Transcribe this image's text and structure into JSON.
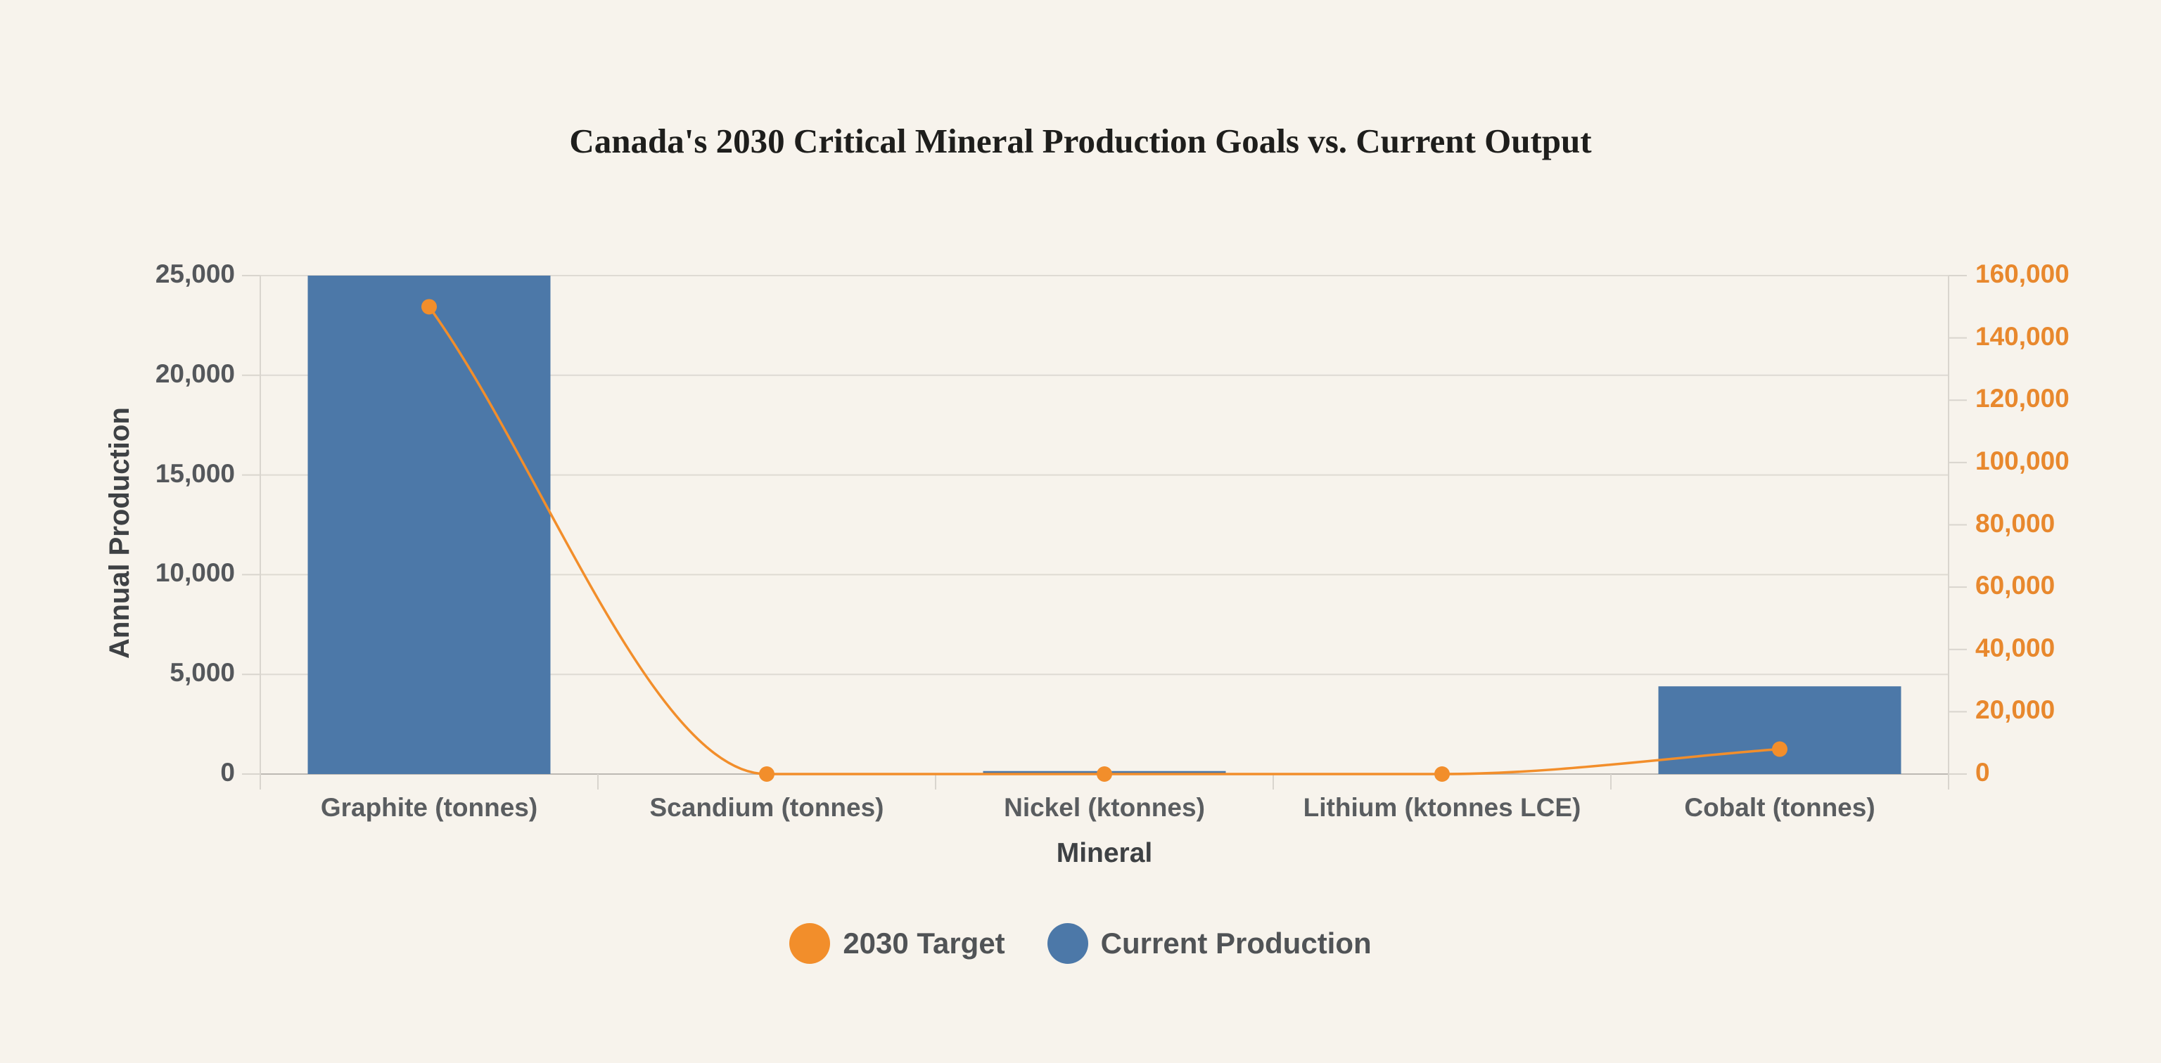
{
  "page": {
    "background": "#F7F3EC"
  },
  "title": {
    "text": "Canada's 2030 Critical Mineral Production Goals vs. Current Output"
  },
  "chart_data": {
    "type": "combo: bar + line, dual y-axes",
    "title": "Canada's 2030 Critical Mineral Production Goals vs. Current Output",
    "categories": [
      "Graphite (tonnes)",
      "Scandium (tonnes)",
      "Nickel (ktonnes)",
      "Lithium (ktonnes LCE)",
      "Cobalt (tonnes)"
    ],
    "series": [
      {
        "name": "2030 Target",
        "type": "line",
        "y_axis": "right",
        "color": "#F28E2B",
        "values": [
          150000,
          0,
          0,
          0,
          8000
        ]
      },
      {
        "name": "Current Production",
        "type": "bar",
        "y_axis": "left",
        "color": "#4C78A8",
        "values": [
          25000,
          0,
          150,
          0,
          4400
        ]
      }
    ],
    "xlabel": "Mineral",
    "ylabel": "Annual Production",
    "left_axis": {
      "range": [
        0,
        25000
      ],
      "tick_step": 5000,
      "tick_labels": [
        "0",
        "5,000",
        "10,000",
        "15,000",
        "20,000",
        "25,000"
      ],
      "label_color": "#54575b"
    },
    "right_axis": {
      "range": [
        0,
        160000
      ],
      "tick_step": 20000,
      "tick_labels": [
        "0",
        "20,000",
        "40,000",
        "60,000",
        "80,000",
        "100,000",
        "120,000",
        "140,000",
        "160,000"
      ],
      "label_color": "#E8882D"
    },
    "grid": "horizontal gridlines at left-axis ticks only",
    "legend": {
      "position": "bottom-center",
      "items": [
        {
          "label": "2030 Target",
          "color": "#F28E2B"
        },
        {
          "label": "Current Production",
          "color": "#4C78A8"
        }
      ]
    },
    "colors": {
      "background": "#F7F3EC",
      "bar_blue": "#4C78A8",
      "line_orange": "#F28E2B",
      "right_axis_label_orange": "#E8882D",
      "gridline": "#DEDAD3",
      "baseline": "#BDB9B3",
      "axis_domain": "#D9D5CE"
    }
  }
}
